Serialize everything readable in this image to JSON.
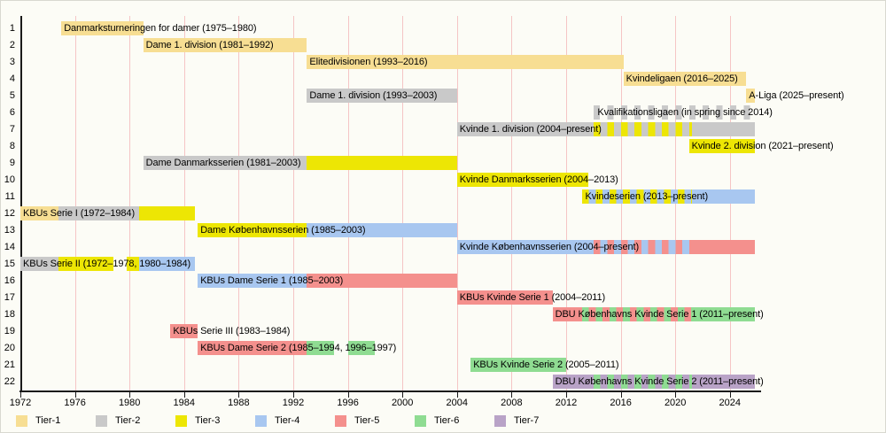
{
  "chart_data": {
    "type": "timeline",
    "title": "",
    "x_axis": {
      "min": 1972,
      "max": 2026,
      "ticks": [
        1972,
        1976,
        1980,
        1984,
        1988,
        1992,
        1996,
        2000,
        2004,
        2008,
        2012,
        2016,
        2020,
        2024
      ],
      "gridline_years": [
        1976,
        1980,
        1984,
        1988,
        1992,
        1996,
        2000,
        2004,
        2008,
        2012,
        2016,
        2020,
        2024
      ],
      "present": 2025.8,
      "grid": true
    },
    "tiers": [
      {
        "id": "tier1",
        "label": "Tier-1",
        "color": "#F7DE93"
      },
      {
        "id": "tier2",
        "label": "Tier-2",
        "color": "#C9C9C9"
      },
      {
        "id": "tier3",
        "label": "Tier-3",
        "color": "#EDE604"
      },
      {
        "id": "tier4",
        "label": "Tier-4",
        "color": "#A8C7F0"
      },
      {
        "id": "tier5",
        "label": "Tier-5",
        "color": "#F4908D"
      },
      {
        "id": "tier6",
        "label": "Tier-6",
        "color": "#8FDC92"
      },
      {
        "id": "tier7",
        "label": "Tier-7",
        "color": "#B9A3C7"
      }
    ],
    "legend_position": "bottom",
    "rows": [
      {
        "num": 1,
        "bars": [
          {
            "label": "Danmarksturneringen for damer (1975–1980)",
            "segments": [
              {
                "from": 1975,
                "to": 1981,
                "tier": "tier1"
              }
            ]
          }
        ]
      },
      {
        "num": 2,
        "bars": [
          {
            "label": "Dame 1. division (1981–1992)",
            "segments": [
              {
                "from": 1981,
                "to": 1993,
                "tier": "tier1"
              }
            ]
          }
        ]
      },
      {
        "num": 3,
        "bars": [
          {
            "label": "Elitedivisionen (1993–2016)",
            "segments": [
              {
                "from": 1993,
                "to": 2016.2,
                "tier": "tier1"
              }
            ]
          }
        ]
      },
      {
        "num": 4,
        "bars": [
          {
            "label": "Kvindeligaen (2016–2025)",
            "segments": [
              {
                "from": 2016.2,
                "to": 2025.2,
                "tier": "tier1"
              }
            ]
          }
        ]
      },
      {
        "num": 5,
        "bars": [
          {
            "label": "Dame 1. division (1993–2003)",
            "segments": [
              {
                "from": 1993,
                "to": 2004,
                "tier": "tier2"
              }
            ]
          },
          {
            "label": "A-Liga (2025–present)",
            "segments": [
              {
                "from": 2025.2,
                "to": 2025.8,
                "tier": "tier1"
              }
            ]
          }
        ]
      },
      {
        "num": 6,
        "bars": [
          {
            "label": "Kvalifikationsligaen (in spring since 2014)",
            "label_year": 2014.1,
            "segments": [
              {
                "from": 2014,
                "to": 2025.8,
                "dash": "tier2"
              }
            ]
          }
        ]
      },
      {
        "num": 7,
        "bars": [
          {
            "label": "Kvinde 1. division (2004–present)",
            "segments": [
              {
                "from": 2004,
                "to": 2014,
                "tier": "tier2"
              },
              {
                "from": 2014,
                "to": 2021.2,
                "stripe": [
                  "tier3",
                  "tier2"
                ]
              },
              {
                "from": 2021.2,
                "to": 2025.8,
                "tier": "tier2"
              }
            ]
          }
        ]
      },
      {
        "num": 8,
        "bars": [
          {
            "label": "Kvinde 2. division (2021–present)",
            "segments": [
              {
                "from": 2021,
                "to": 2025.8,
                "tier": "tier3"
              }
            ]
          }
        ]
      },
      {
        "num": 9,
        "bars": [
          {
            "label": "Dame Danmarksserien (1981–2003)",
            "segments": [
              {
                "from": 1981,
                "to": 1993,
                "tier": "tier2"
              },
              {
                "from": 1993,
                "to": 2004,
                "tier": "tier3"
              }
            ]
          }
        ]
      },
      {
        "num": 10,
        "bars": [
          {
            "label": "Kvinde Danmarksserien (2004–2013)",
            "segments": [
              {
                "from": 2004,
                "to": 2013.6,
                "tier": "tier3"
              }
            ]
          }
        ]
      },
      {
        "num": 11,
        "bars": [
          {
            "label": "Kvindeserien (2013–present)",
            "segments": [
              {
                "from": 2013.2,
                "to": 2021.2,
                "stripe": [
                  "tier3",
                  "tier4"
                ]
              },
              {
                "from": 2021.2,
                "to": 2025.8,
                "tier": "tier4"
              }
            ]
          }
        ]
      },
      {
        "num": 12,
        "bars": [
          {
            "label": "KBUs Serie I (1972–1984)",
            "segments": [
              {
                "from": 1972,
                "to": 1974.8,
                "tier": "tier1"
              },
              {
                "from": 1974.8,
                "to": 1980.7,
                "tier": "tier2"
              },
              {
                "from": 1980.7,
                "to": 1984.8,
                "tier": "tier3"
              }
            ]
          }
        ]
      },
      {
        "num": 13,
        "bars": [
          {
            "label": "Dame Københavnsserien (1985–2003)",
            "segments": [
              {
                "from": 1985,
                "to": 1993,
                "tier": "tier3"
              },
              {
                "from": 1993,
                "to": 2004,
                "tier": "tier4"
              }
            ]
          }
        ]
      },
      {
        "num": 14,
        "bars": [
          {
            "label": "Kvinde Københavnsserien (2004–present)",
            "segments": [
              {
                "from": 2004,
                "to": 2014,
                "tier": "tier4"
              },
              {
                "from": 2014,
                "to": 2021.2,
                "stripe": [
                  "tier5",
                  "tier4"
                ]
              },
              {
                "from": 2021.2,
                "to": 2025.8,
                "tier": "tier5"
              }
            ]
          }
        ]
      },
      {
        "num": 15,
        "bars": [
          {
            "label": "KBUs Serie II (1972–1978, 1980–1984)",
            "segments": [
              {
                "from": 1972,
                "to": 1974.8,
                "tier": "tier2"
              },
              {
                "from": 1974.8,
                "to": 1978.8,
                "tier": "tier3"
              },
              {
                "from": 1979.8,
                "to": 1980.7,
                "tier": "tier3"
              },
              {
                "from": 1980.7,
                "to": 1984.8,
                "tier": "tier4"
              }
            ]
          }
        ]
      },
      {
        "num": 16,
        "bars": [
          {
            "label": "KBUs Dame Serie 1 (1985–2003)",
            "segments": [
              {
                "from": 1985,
                "to": 1993,
                "tier": "tier4"
              },
              {
                "from": 1993,
                "to": 2004,
                "tier": "tier5"
              }
            ]
          }
        ]
      },
      {
        "num": 17,
        "bars": [
          {
            "label": "KBUs Kvinde Serie 1 (2004–2011)",
            "segments": [
              {
                "from": 2004,
                "to": 2011,
                "tier": "tier5"
              }
            ]
          }
        ]
      },
      {
        "num": 18,
        "bars": [
          {
            "label": "DBU Københavns Kvinde Serie 1 (2011–present)",
            "segments": [
              {
                "from": 2011,
                "to": 2013.2,
                "tier": "tier5"
              },
              {
                "from": 2013.2,
                "to": 2021.2,
                "stripe": [
                  "tier6",
                  "tier5"
                ]
              },
              {
                "from": 2021.2,
                "to": 2025.8,
                "tier": "tier6"
              }
            ]
          }
        ]
      },
      {
        "num": 19,
        "bars": [
          {
            "label": "KBUs Serie III (1983–1984)",
            "segments": [
              {
                "from": 1983,
                "to": 1985,
                "tier": "tier5"
              }
            ]
          }
        ]
      },
      {
        "num": 20,
        "bars": [
          {
            "label": "KBUs Dame Serie 2 (1985–1994, 1996–1997)",
            "segments": [
              {
                "from": 1985,
                "to": 1993,
                "tier": "tier5"
              },
              {
                "from": 1993,
                "to": 1995,
                "tier": "tier6"
              },
              {
                "from": 1996,
                "to": 1998,
                "tier": "tier6"
              }
            ]
          }
        ]
      },
      {
        "num": 21,
        "bars": [
          {
            "label": "KBUs Kvinde Serie 2 (2005–2011)",
            "segments": [
              {
                "from": 2005,
                "to": 2012,
                "tier": "tier6"
              }
            ]
          }
        ]
      },
      {
        "num": 22,
        "bars": [
          {
            "label": "DBU Københavns Kvinde Serie 2 (2011–present)",
            "segments": [
              {
                "from": 2011,
                "to": 2014,
                "tier": "tier7"
              },
              {
                "from": 2014,
                "to": 2021.2,
                "stripe": [
                  "tier6",
                  "tier7"
                ]
              },
              {
                "from": 2021.2,
                "to": 2025.8,
                "tier": "tier7"
              }
            ]
          }
        ]
      }
    ]
  }
}
